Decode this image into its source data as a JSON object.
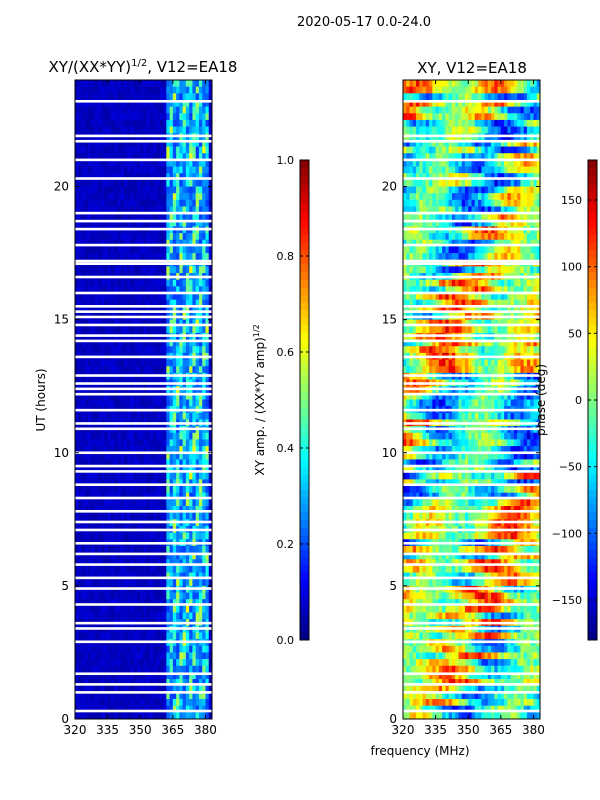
{
  "suptitle": "2020-05-17 0.0-24.0",
  "shared_xlabel": "frequency (MHz)",
  "chart_data": [
    {
      "type": "heatmap",
      "title_main": "XY/(XX*YY)",
      "title_sup": "1/2",
      "title_rest": ", V12=EA18",
      "ylabel": "UT (hours)",
      "xlim": [
        320,
        383
      ],
      "ylim": [
        0,
        24
      ],
      "xticks": [
        320,
        335,
        350,
        365,
        380
      ],
      "yticks": [
        0,
        5,
        10,
        15,
        20
      ],
      "colorbar": {
        "label_main": "XY amp. / (XX*YY amp)",
        "label_sup": "1/2",
        "ticks": [
          0.0,
          0.2,
          0.4,
          0.6,
          0.8,
          1.0
        ],
        "tick_labels": [
          "0.0",
          "0.2",
          "0.4",
          "0.6",
          "0.8",
          "1.0"
        ],
        "range": [
          0,
          1
        ],
        "colormap": "jet"
      },
      "gap_hours": [
        0.3,
        1.0,
        1.3,
        1.7,
        2.9,
        3.4,
        3.6,
        4.3,
        4.9,
        5.3,
        5.8,
        6.2,
        6.6,
        7.1,
        7.4,
        7.8,
        8.3,
        8.8,
        9.3,
        9.5,
        10.0,
        10.9,
        11.1,
        11.6,
        12.2,
        12.4,
        12.6,
        12.9,
        13.6,
        14.2,
        14.4,
        14.8,
        15.1,
        15.3,
        15.5,
        16.0,
        16.6,
        17.1,
        17.2,
        17.8,
        18.4,
        18.7,
        19.0,
        20.3,
        21.0,
        21.7,
        21.9,
        23.2
      ],
      "bright_band_mhz": [
        362,
        382
      ]
    },
    {
      "type": "heatmap",
      "title": "XY, V12=EA18",
      "ylabel": "",
      "xlim": [
        320,
        383
      ],
      "ylim": [
        0,
        24
      ],
      "xticks": [
        320,
        335,
        350,
        365,
        380
      ],
      "yticks": [
        0,
        5,
        10,
        15,
        20
      ],
      "colorbar": {
        "label": "phase (deg)",
        "ticks": [
          -150,
          -100,
          -50,
          0,
          50,
          100,
          150
        ],
        "tick_labels": [
          "−150",
          "−100",
          "−50",
          "0",
          "50",
          "100",
          "150"
        ],
        "range": [
          -180,
          180
        ],
        "colormap": "jet"
      },
      "gap_hours": [
        0.3,
        1.0,
        1.3,
        1.7,
        2.9,
        3.4,
        3.6,
        4.3,
        4.9,
        5.3,
        5.8,
        6.2,
        6.6,
        7.1,
        7.4,
        7.8,
        8.3,
        8.8,
        9.3,
        9.5,
        10.0,
        10.9,
        11.1,
        11.6,
        12.2,
        12.4,
        12.6,
        12.9,
        13.6,
        14.2,
        14.4,
        14.8,
        15.1,
        15.3,
        15.5,
        16.0,
        16.6,
        17.1,
        17.2,
        17.8,
        18.4,
        18.7,
        19.0,
        20.3,
        21.0,
        21.7,
        21.9,
        23.2
      ]
    }
  ]
}
